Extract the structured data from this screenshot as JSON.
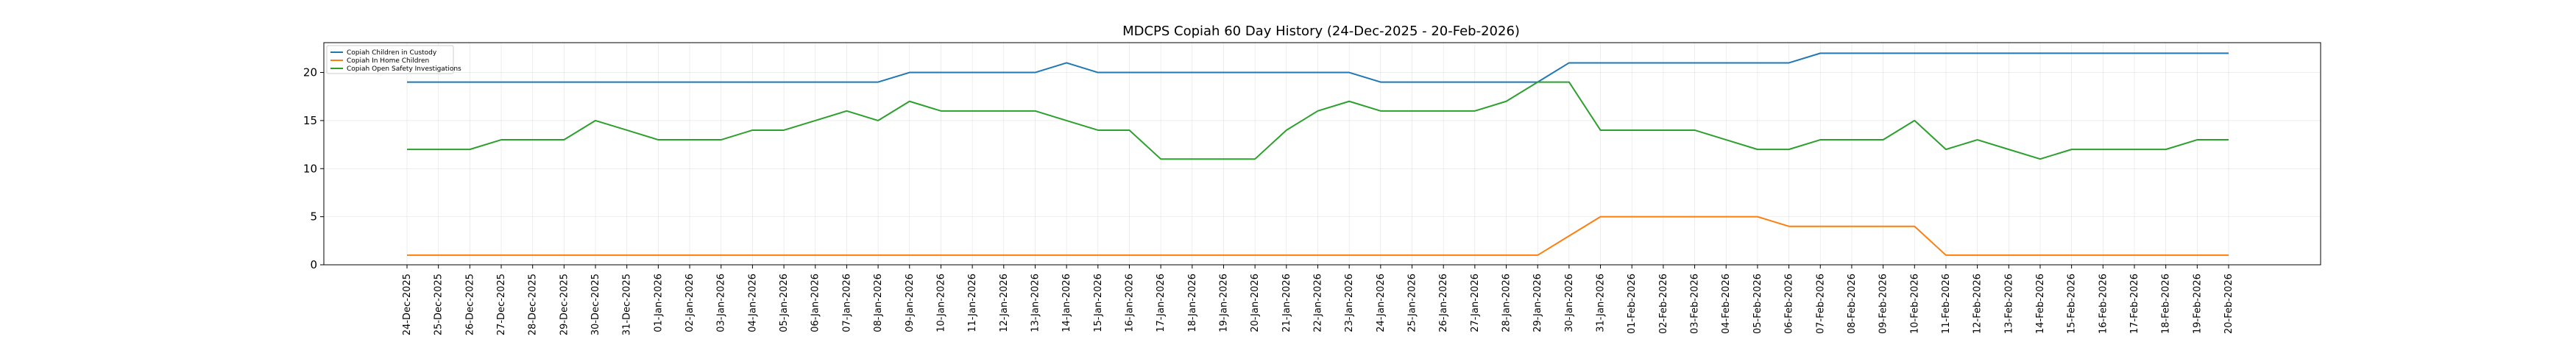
{
  "chart_data": {
    "type": "line",
    "title": "MDCPS Copiah 60 Day History (24-Dec-2025 - 20-Feb-2026)",
    "xlabel": "",
    "ylabel": "",
    "ylim": [
      0,
      23.1
    ],
    "yticks": [
      0,
      5,
      10,
      15,
      20
    ],
    "grid": true,
    "legend_position": "top-left",
    "categories": [
      "24-Dec-2025",
      "25-Dec-2025",
      "26-Dec-2025",
      "27-Dec-2025",
      "28-Dec-2025",
      "29-Dec-2025",
      "30-Dec-2025",
      "31-Dec-2025",
      "01-Jan-2026",
      "02-Jan-2026",
      "03-Jan-2026",
      "04-Jan-2026",
      "05-Jan-2026",
      "06-Jan-2026",
      "07-Jan-2026",
      "08-Jan-2026",
      "09-Jan-2026",
      "10-Jan-2026",
      "11-Jan-2026",
      "12-Jan-2026",
      "13-Jan-2026",
      "14-Jan-2026",
      "15-Jan-2026",
      "16-Jan-2026",
      "17-Jan-2026",
      "18-Jan-2026",
      "19-Jan-2026",
      "20-Jan-2026",
      "21-Jan-2026",
      "22-Jan-2026",
      "23-Jan-2026",
      "24-Jan-2026",
      "25-Jan-2026",
      "26-Jan-2026",
      "27-Jan-2026",
      "28-Jan-2026",
      "29-Jan-2026",
      "30-Jan-2026",
      "31-Jan-2026",
      "01-Feb-2026",
      "02-Feb-2026",
      "03-Feb-2026",
      "04-Feb-2026",
      "05-Feb-2026",
      "06-Feb-2026",
      "07-Feb-2026",
      "08-Feb-2026",
      "09-Feb-2026",
      "10-Feb-2026",
      "11-Feb-2026",
      "12-Feb-2026",
      "13-Feb-2026",
      "14-Feb-2026",
      "15-Feb-2026",
      "16-Feb-2026",
      "17-Feb-2026",
      "18-Feb-2026",
      "19-Feb-2026",
      "20-Feb-2026"
    ],
    "series": [
      {
        "name": "Copiah Children in Custody",
        "color": "#1f77b4",
        "values": [
          19,
          19,
          19,
          19,
          19,
          19,
          19,
          19,
          19,
          19,
          19,
          19,
          19,
          19,
          19,
          19,
          20,
          20,
          20,
          20,
          20,
          21,
          20,
          20,
          20,
          20,
          20,
          20,
          20,
          20,
          20,
          19,
          19,
          19,
          19,
          19,
          19,
          21,
          21,
          21,
          21,
          21,
          21,
          21,
          21,
          22,
          22,
          22,
          22,
          22,
          22,
          22,
          22,
          22,
          22,
          22,
          22,
          22,
          22
        ]
      },
      {
        "name": "Copiah In Home Children",
        "color": "#ff7f0e",
        "values": [
          1,
          1,
          1,
          1,
          1,
          1,
          1,
          1,
          1,
          1,
          1,
          1,
          1,
          1,
          1,
          1,
          1,
          1,
          1,
          1,
          1,
          1,
          1,
          1,
          1,
          1,
          1,
          1,
          1,
          1,
          1,
          1,
          1,
          1,
          1,
          1,
          1,
          3,
          5,
          5,
          5,
          5,
          5,
          5,
          4,
          4,
          4,
          4,
          4,
          1,
          1,
          1,
          1,
          1,
          1,
          1,
          1,
          1,
          1
        ]
      },
      {
        "name": "Copiah Open Safety Investigations",
        "color": "#2ca02c",
        "values": [
          12,
          12,
          12,
          13,
          13,
          13,
          15,
          14,
          13,
          13,
          13,
          14,
          14,
          15,
          16,
          15,
          17,
          16,
          16,
          16,
          16,
          15,
          14,
          14,
          11,
          11,
          11,
          11,
          14,
          16,
          17,
          16,
          16,
          16,
          16,
          17,
          19,
          19,
          14,
          14,
          14,
          14,
          13,
          12,
          12,
          13,
          13,
          13,
          15,
          12,
          13,
          12,
          11,
          12,
          12,
          12,
          12,
          13,
          13
        ]
      }
    ]
  }
}
